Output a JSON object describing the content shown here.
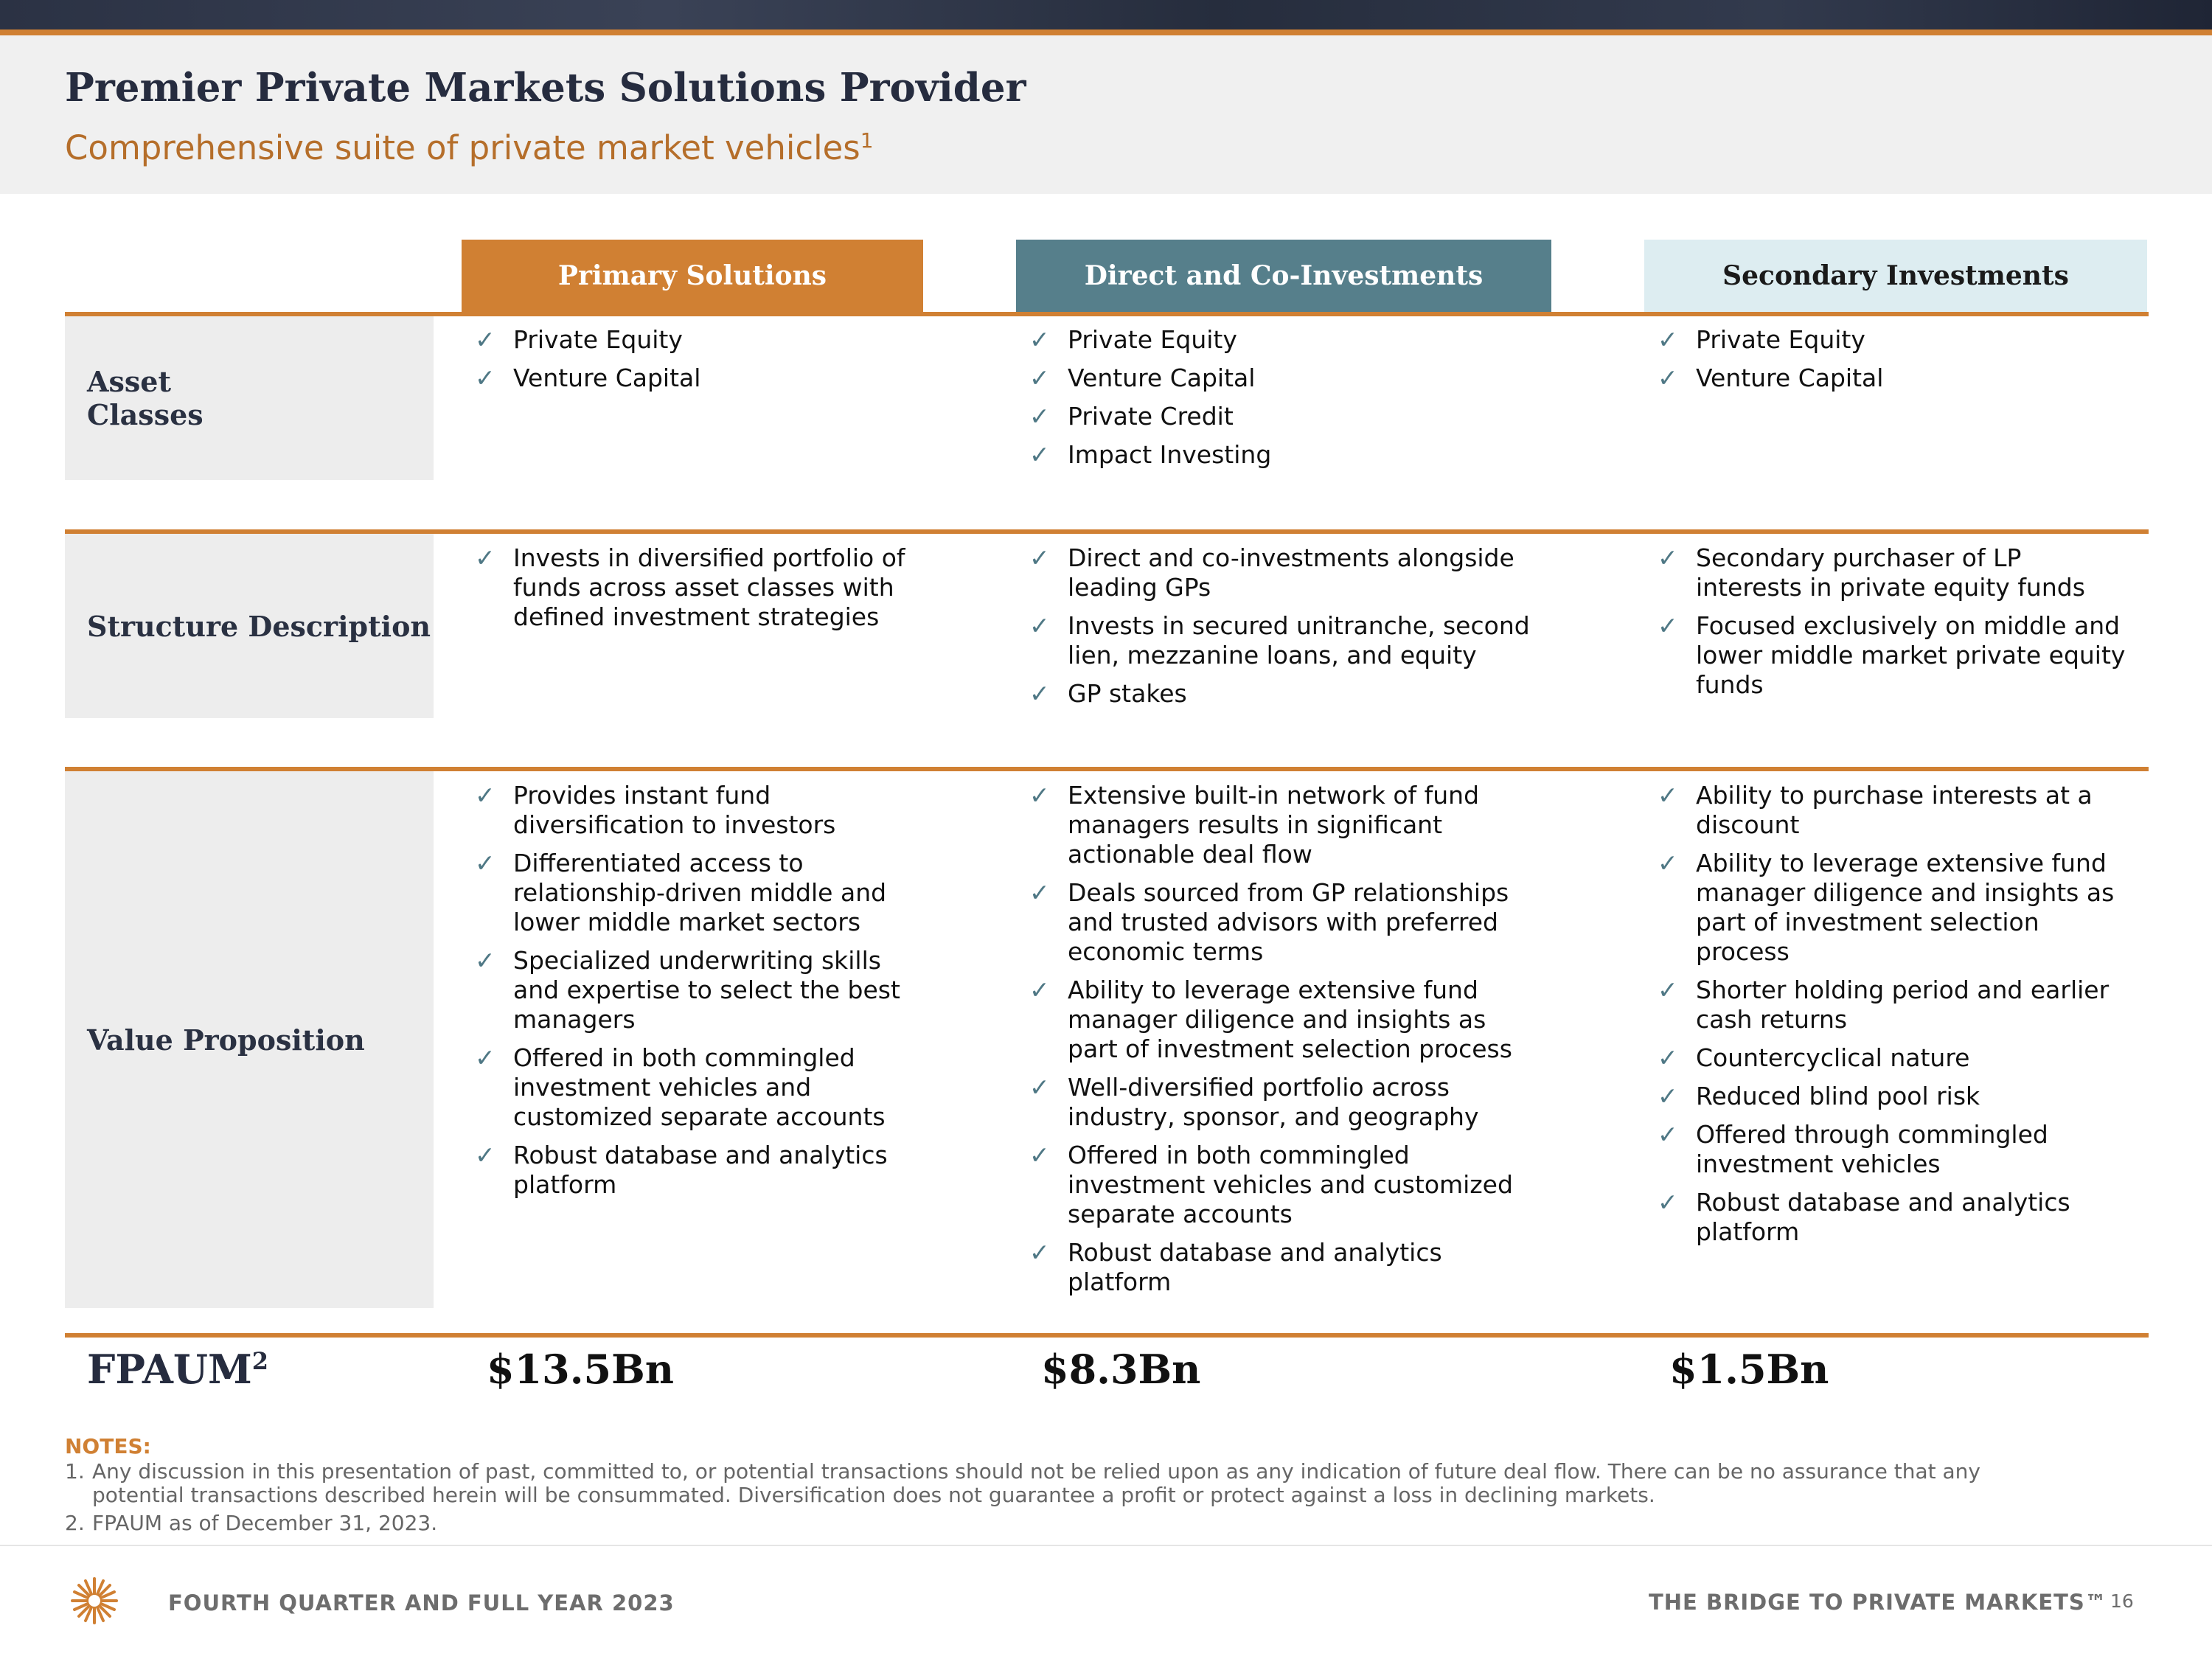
{
  "header": {
    "title": "Premier Private Markets Solutions Provider",
    "subtitle": "Comprehensive suite of private market vehicles",
    "subtitle_note": "1"
  },
  "columns": [
    {
      "label": "Primary Solutions",
      "color": "#d08033"
    },
    {
      "label": "Direct and Co-Investments",
      "color": "#567f8b"
    },
    {
      "label": "Secondary Investments",
      "color": "#ddedf1"
    }
  ],
  "rows": {
    "asset_classes": {
      "label_line1": "Asset",
      "label_line2": "Classes",
      "primary": [
        "Private Equity",
        "Venture Capital"
      ],
      "direct": [
        "Private Equity",
        "Venture Capital",
        "Private Credit",
        "Impact Investing"
      ],
      "secondary": [
        "Private Equity",
        "Venture Capital"
      ]
    },
    "structure": {
      "label": "Structure Description",
      "primary": [
        [
          "Invests in diversified portfolio of",
          "funds across asset classes with",
          "defined investment strategies"
        ]
      ],
      "direct": [
        [
          "Direct and co-investments alongside",
          "leading GPs"
        ],
        [
          "Invests in secured unitranche, second",
          "lien, mezzanine loans, and equity"
        ],
        [
          "GP stakes"
        ]
      ],
      "secondary": [
        [
          "Secondary purchaser of LP",
          "interests in private equity funds"
        ],
        [
          "Focused exclusively on middle and",
          "lower middle market private equity",
          "funds"
        ]
      ]
    },
    "value": {
      "label": "Value Proposition",
      "primary": [
        [
          "Provides instant fund",
          "diversification to investors"
        ],
        [
          "Differentiated access to",
          "relationship-driven middle and",
          "lower middle market sectors"
        ],
        [
          "Specialized underwriting skills",
          "and expertise to select the best",
          "managers"
        ],
        [
          "Offered in both commingled",
          "investment vehicles and",
          "customized separate accounts"
        ],
        [
          "Robust database and analytics",
          "platform"
        ]
      ],
      "direct": [
        [
          "Extensive built-in network of fund",
          "managers results in significant",
          "actionable deal flow"
        ],
        [
          "Deals sourced from GP relationships",
          "and trusted advisors with preferred",
          "economic terms"
        ],
        [
          "Ability to leverage extensive fund",
          "manager diligence and insights as",
          "part of investment selection process"
        ],
        [
          "Well-diversified portfolio across",
          "industry, sponsor, and geography"
        ],
        [
          "Offered in both commingled",
          "investment vehicles and customized",
          "separate accounts"
        ],
        [
          "Robust database and analytics",
          "platform"
        ]
      ],
      "secondary": [
        [
          "Ability to purchase interests at a",
          "discount"
        ],
        [
          "Ability to leverage extensive fund",
          "manager diligence and insights as",
          "part of investment selection",
          "process"
        ],
        [
          "Shorter holding period and earlier",
          "cash returns"
        ],
        [
          "Countercyclical nature"
        ],
        [
          "Reduced blind pool risk"
        ],
        [
          "Offered through commingled",
          "investment vehicles"
        ],
        [
          "Robust database and analytics",
          "platform"
        ]
      ]
    }
  },
  "fpaum": {
    "label": "FPAUM",
    "label_note": "2",
    "primary": "$13.5Bn",
    "direct": "$8.3Bn",
    "secondary": "$1.5Bn"
  },
  "notes": {
    "title": "NOTES:",
    "items": [
      {
        "num": "1.",
        "line1": "Any discussion in this presentation of past, committed to, or potential transactions should not be relied upon as any indication of future deal flow. There can be no assurance that any",
        "line2": "potential transactions described herein will be consummated. Diversification does not guarantee a profit or protect against a loss in declining markets."
      },
      {
        "num": "2.",
        "line1": "FPAUM as of December 31, 2023."
      }
    ]
  },
  "footer": {
    "left": "FOURTH QUARTER AND FULL YEAR 2023",
    "right": "THE BRIDGE TO PRIVATE MARKETS™",
    "page": "16"
  },
  "icons": {
    "check": "checkmark-icon",
    "logo": "company-logo"
  },
  "colors": {
    "accent": "#d08033",
    "teal": "#567f8b",
    "light_blue": "#ddedf1",
    "navy": "#262c3f"
  }
}
